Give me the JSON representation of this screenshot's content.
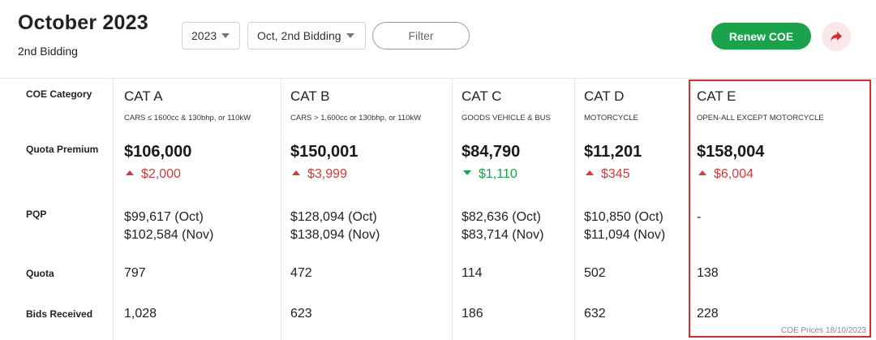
{
  "header": {
    "title": "October 2023",
    "subtitle": "2nd Bidding",
    "year_select": "2023",
    "bidding_select": "Oct, 2nd Bidding",
    "filter_label": "Filter",
    "renew_label": "Renew COE",
    "share_icon": "share-arrow-icon"
  },
  "row_labels": {
    "category": "COE Category",
    "premium": "Quota Premium",
    "pqp": "PQP",
    "quota": "Quota",
    "bids": "Bids Received"
  },
  "categories": [
    {
      "name": "CAT A",
      "desc": "CARS ≤ 1600cc & 130bhp, or 110kW",
      "premium": "$106,000",
      "change": "$2,000",
      "direction": "up",
      "pqp_oct": "$99,617 (Oct)",
      "pqp_nov": "$102,584 (Nov)",
      "quota": "797",
      "bids": "1,028"
    },
    {
      "name": "CAT B",
      "desc": "CARS > 1,600cc or 130bhp, or 110kW",
      "premium": "$150,001",
      "change": "$3,999",
      "direction": "up",
      "pqp_oct": "$128,094 (Oct)",
      "pqp_nov": "$138,094 (Nov)",
      "quota": "472",
      "bids": "623"
    },
    {
      "name": "CAT C",
      "desc": "GOODS VEHICLE & BUS",
      "premium": "$84,790",
      "change": "$1,110",
      "direction": "down",
      "pqp_oct": "$82,636 (Oct)",
      "pqp_nov": "$83,714 (Nov)",
      "quota": "114",
      "bids": "186"
    },
    {
      "name": "CAT D",
      "desc": "MOTORCYCLE",
      "premium": "$11,201",
      "change": "$345",
      "direction": "up",
      "pqp_oct": "$10,850 (Oct)",
      "pqp_nov": "$11,094 (Nov)",
      "quota": "502",
      "bids": "632"
    },
    {
      "name": "CAT E",
      "desc": "OPEN-ALL EXCEPT MOTORCYCLE",
      "premium": "$158,004",
      "change": "$6,004",
      "direction": "up",
      "pqp_oct": "-",
      "pqp_nov": "",
      "quota": "138",
      "bids": "228"
    }
  ],
  "colors": {
    "accent": "#1aa34a",
    "up": "#d63a3a",
    "down": "#1aa34a",
    "highlight": "#e02a2a"
  },
  "footer_note": "COE Prices 18/10/2023"
}
